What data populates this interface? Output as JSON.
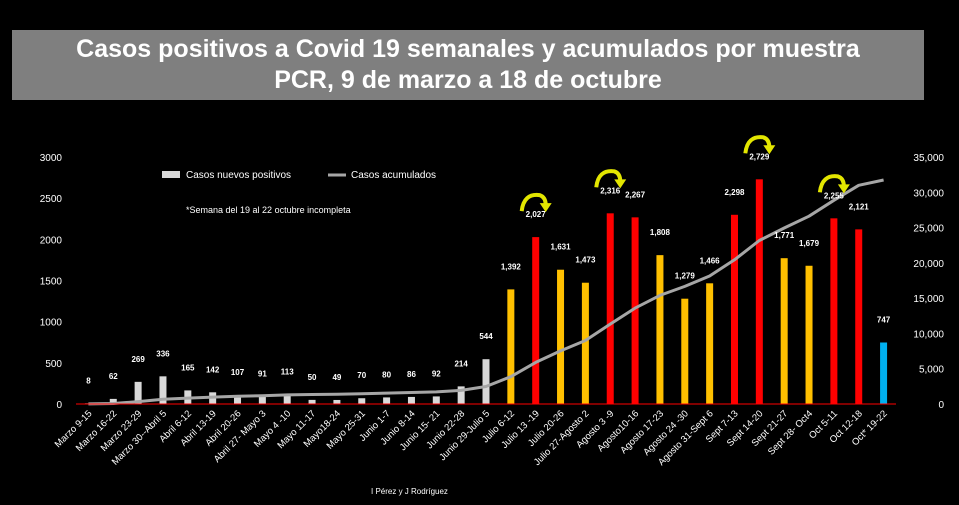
{
  "title_line1": "Casos positivos a Covid 19 semanales y acumulados por muestra",
  "title_line2": "PCR, 9 de marzo a 18 de octubre",
  "credit": "I Pérez y J Rodríguez",
  "note": "*Semana del 19 al 22 octubre incompleta",
  "colors": {
    "background": "#000000",
    "title_bg": "#7f7f7f",
    "white_bar": "#d9d9d9",
    "orange_bar": "#ffc000",
    "red_bar": "#ff0000",
    "blue_bar": "#00b0f0",
    "line": "#a6a6a6",
    "arrow": "#e3e600"
  },
  "chart_data": {
    "type": "bar",
    "categories": [
      "Marzo 9-15",
      "Marzo 16-22",
      "Marzo 23-29",
      "Marzo 30--Abril 5",
      "Abril 6-12",
      "Abril 13-19",
      "Abril 20-26",
      "Abril 27- Mayo 3",
      "Mayo 4 -10",
      "Mayo 11-17",
      "Mayo18-24",
      "Mayo 25-31",
      "Junio  1-7",
      "Junio 8-14",
      "Junio 15- 21",
      "Junio 22-28",
      "Junio  29-Julio 5",
      "Julio 6-12",
      "Julio 13 -19",
      "Julio 20-26",
      "Julio 27-Agosto 2",
      "Agosto 3 -9",
      "Agosto10-16",
      "Agosto 17-23",
      "Agosto 24 -30",
      "Agosto 31-Sept 6",
      "Sept 7-13",
      "Sept 14-20",
      "Sept 21-27",
      "Sept 28- Oct4",
      "Oct 5-11",
      "Oct 12-18",
      "Oct* 19-22"
    ],
    "series": [
      {
        "name": "Casos nuevos positivos",
        "axis": "left",
        "values": [
          8,
          62,
          269,
          336,
          165,
          142,
          107,
          91,
          113,
          50,
          49,
          70,
          80,
          86,
          92,
          214,
          544,
          1392,
          2027,
          1631,
          1473,
          2316,
          2267,
          1808,
          1279,
          1466,
          2298,
          2729,
          1771,
          1679,
          2255,
          2121,
          747
        ],
        "labels": [
          "8",
          "62",
          "269",
          "336",
          "165",
          "142",
          "107",
          "91",
          "113",
          "50",
          "49",
          "70",
          "80",
          "86",
          "92",
          "214",
          "544",
          "1,392",
          "2,027",
          "1,631",
          "1,473",
          "2,316",
          "2,267",
          "1,808",
          "1,279",
          "1,466",
          "2,298",
          "2,729",
          "1,771",
          "1,679",
          "2,255",
          "2,121",
          "747"
        ],
        "colors": [
          "white",
          "white",
          "white",
          "white",
          "white",
          "white",
          "white",
          "white",
          "white",
          "white",
          "white",
          "white",
          "white",
          "white",
          "white",
          "white",
          "white",
          "orange",
          "red",
          "orange",
          "orange",
          "red",
          "red",
          "orange",
          "orange",
          "orange",
          "red",
          "red",
          "orange",
          "orange",
          "red",
          "red",
          "blue"
        ]
      },
      {
        "name": "Casos acumulados",
        "axis": "right",
        "values": [
          8,
          70,
          339,
          675,
          840,
          982,
          1089,
          1180,
          1293,
          1343,
          1392,
          1462,
          1542,
          1628,
          1720,
          1934,
          2478,
          3870,
          5897,
          7528,
          9001,
          11317,
          13584,
          15392,
          16671,
          18137,
          20435,
          23164,
          24935,
          26614,
          28869,
          30990,
          31737
        ]
      }
    ],
    "ylim_left": [
      0,
      3000
    ],
    "yticks_left": [
      "0",
      "500",
      "1000",
      "1500",
      "2000",
      "2500",
      "3000"
    ],
    "ylim_right": [
      0,
      35000
    ],
    "yticks_right": [
      "0",
      "5,000",
      "10,000",
      "15,000",
      "20,000",
      "25,000",
      "30,000",
      "35,000"
    ],
    "legend_position": "top-left",
    "arrow_markers_at": [
      18,
      21,
      27,
      30
    ]
  }
}
